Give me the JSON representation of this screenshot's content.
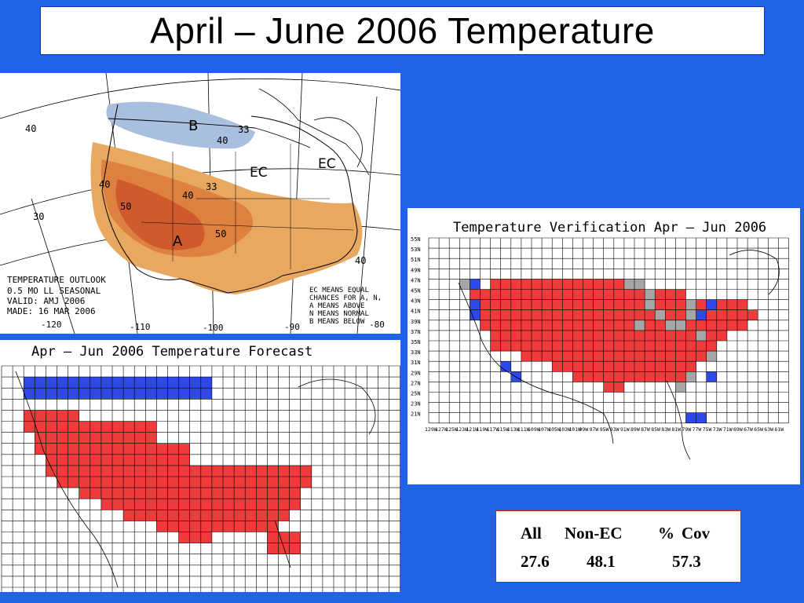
{
  "slide": {
    "title": "April – June 2006 Temperature",
    "background_color": "#1f63e6"
  },
  "outlook_map": {
    "labels": {
      "b_region": "B",
      "a_region": "A",
      "ec_1": "EC",
      "ec_2": "EC"
    },
    "contours": [
      "40",
      "33",
      "40",
      "40",
      "33",
      "40",
      "50",
      "50",
      "30",
      "40"
    ],
    "longitudes": [
      "-120",
      "-110",
      "-100",
      "-90",
      "-80"
    ],
    "legend_lines": [
      "TEMPERATURE OUTLOOK",
      "0.5 MO LL SEASONAL",
      "VALID: AMJ 2006",
      "MADE: 16 MAR 2006"
    ],
    "key_lines": [
      "EC MEANS EQUAL",
      "CHANCES FOR A, N,",
      "A MEANS ABOVE",
      "N MEANS NORMAL",
      "B MEANS BELOW"
    ],
    "colors": {
      "below": "#a9bfdf",
      "above_33": "#e8a860",
      "above_40": "#de8040",
      "above_50": "#cf5a2c"
    }
  },
  "verification_map": {
    "title": "Temperature Verification Apr – Jun 2006",
    "lat_labels": [
      "55N",
      "53N",
      "51N",
      "49N",
      "47N",
      "45N",
      "43N",
      "41N",
      "39N",
      "37N",
      "35N",
      "33N",
      "31N",
      "29N",
      "27N",
      "25N",
      "23N",
      "21N"
    ],
    "lon_labels": [
      "129W",
      "127W",
      "125W",
      "123W",
      "121W",
      "119W",
      "117W",
      "115W",
      "113W",
      "111W",
      "109W",
      "107W",
      "105W",
      "103W",
      "101W",
      "99W",
      "97W",
      "95W",
      "93W",
      "91W",
      "89W",
      "87W",
      "85W",
      "83W",
      "81W",
      "79W",
      "77W",
      "75W",
      "73W",
      "71W",
      "69W",
      "67W",
      "65W",
      "63W",
      "61W"
    ],
    "colors": {
      "above": "#ef3b3b",
      "below": "#2e49e6",
      "ec": "#a6a6a6"
    }
  },
  "forecast_map": {
    "title": "Apr – Jun 2006 Temperature Forecast",
    "colors": {
      "above": "#ef3b3b",
      "below": "#2e49e6"
    }
  },
  "stats": {
    "headers": [
      "All",
      "Non-EC",
      "%",
      "Cov"
    ],
    "values": [
      "27.6",
      "48.1",
      "57.3"
    ]
  }
}
